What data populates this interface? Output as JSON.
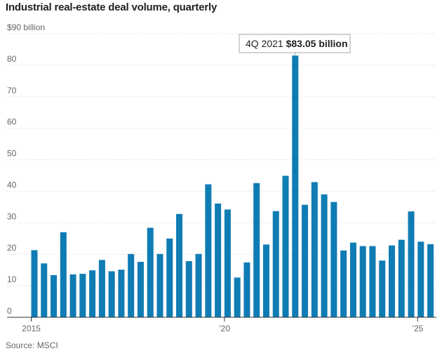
{
  "title": "Industrial real-estate deal volume, quarterly",
  "source": "Source: MSCI",
  "chart_data": {
    "type": "bar",
    "title": "Industrial real-estate deal volume, quarterly",
    "unit": "billion",
    "ylim": [
      0,
      90
    ],
    "yticks": [
      {
        "value": 0,
        "label": "0"
      },
      {
        "value": 10,
        "label": "10"
      },
      {
        "value": 20,
        "label": "20"
      },
      {
        "value": 30,
        "label": "30"
      },
      {
        "value": 40,
        "label": "40"
      },
      {
        "value": 50,
        "label": "50"
      },
      {
        "value": 60,
        "label": "60"
      },
      {
        "value": 70,
        "label": "70"
      },
      {
        "value": 80,
        "label": "80"
      },
      {
        "value": 90,
        "label": "$90 billion"
      }
    ],
    "xticks": [
      {
        "category": "1Q 2015",
        "label": "2015"
      },
      {
        "category": "1Q 2020",
        "label": "’20"
      },
      {
        "category": "1Q 2025",
        "label": "’25"
      }
    ],
    "grid": true,
    "color": "#0f7cb4",
    "categories": [
      "1Q 2015",
      "2Q 2015",
      "3Q 2015",
      "4Q 2015",
      "1Q 2016",
      "2Q 2016",
      "3Q 2016",
      "4Q 2016",
      "1Q 2017",
      "2Q 2017",
      "3Q 2017",
      "4Q 2017",
      "1Q 2018",
      "2Q 2018",
      "3Q 2018",
      "4Q 2018",
      "1Q 2019",
      "2Q 2019",
      "3Q 2019",
      "4Q 2019",
      "1Q 2020",
      "2Q 2020",
      "3Q 2020",
      "4Q 2020",
      "1Q 2021",
      "2Q 2021",
      "3Q 2021",
      "4Q 2021",
      "1Q 2022",
      "2Q 2022",
      "3Q 2022",
      "4Q 2022",
      "1Q 2023",
      "2Q 2023",
      "3Q 2023",
      "4Q 2023",
      "1Q 2024",
      "2Q 2024",
      "3Q 2024",
      "4Q 2024",
      "1Q 2025",
      "2Q 2025"
    ],
    "values": [
      21.3,
      17.1,
      13.4,
      27.0,
      13.6,
      13.8,
      14.9,
      18.2,
      14.6,
      15.1,
      20.1,
      17.6,
      28.4,
      20.1,
      25.0,
      32.8,
      17.8,
      20.1,
      42.2,
      36.1,
      34.2,
      12.6,
      17.4,
      42.6,
      23.1,
      33.7,
      44.9,
      83.05,
      35.7,
      42.9,
      39.0,
      36.6,
      21.2,
      23.7,
      22.6,
      22.6,
      18.0,
      22.8,
      24.6,
      33.6,
      24.0,
      23.2
    ],
    "annotation": {
      "category": "4Q 2021",
      "label": "4Q 2021",
      "value_label": "$83.05 billion"
    }
  }
}
